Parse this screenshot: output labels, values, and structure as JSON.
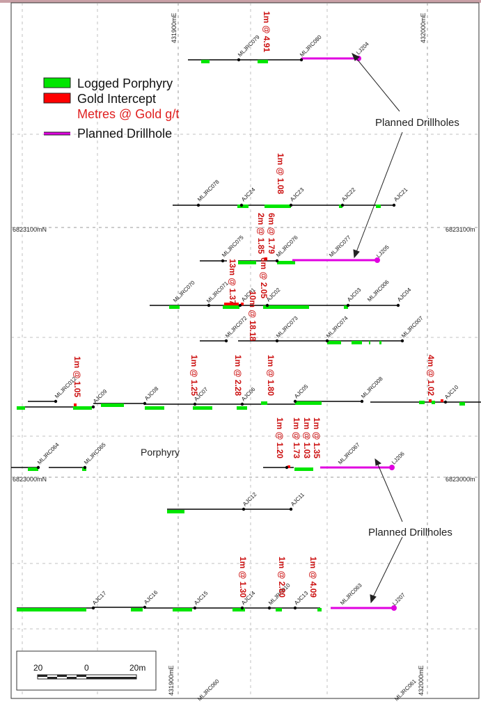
{
  "map": {
    "grid_labels": {
      "e_left_top": "431900mE",
      "e_right_top": "432000mE",
      "e_left_bottom": "431900mE",
      "e_right_bottom": "432000mE",
      "n_upper_left": "6823100mN",
      "n_upper_right": "6823100m",
      "n_lower_left": "6823000mN",
      "n_lower_right": "6823000m"
    },
    "legend": {
      "porphyry": "Logged Porphyry",
      "gold": "Gold Intercept",
      "metres": "Metres @ Gold g/t",
      "planned": "Planned Drillhole"
    },
    "callouts": {
      "top": "Planned Drillholes",
      "bottom": "Planned Drillholes",
      "porphyry": "Porphyry"
    },
    "scale_bar": {
      "left": "20",
      "mid": "0",
      "right": "20m"
    },
    "colors": {
      "porphyry": "#00e600",
      "gold": "#ff0000",
      "planned": "#e000e0",
      "hole": "#000000",
      "intercept_text": "#cc1111",
      "grid": "#999999"
    },
    "holes": [
      {
        "name": "MLJRC079"
      },
      {
        "name": "MLJRC080"
      },
      {
        "name": "LJ204"
      },
      {
        "name": "MLJRC078"
      },
      {
        "name": "AJC24"
      },
      {
        "name": "AJC23"
      },
      {
        "name": "AJC22"
      },
      {
        "name": "AJC21"
      },
      {
        "name": "MLJRC075"
      },
      {
        "name": "MLJRC076"
      },
      {
        "name": "MLJRC077"
      },
      {
        "name": "LJ205"
      },
      {
        "name": "MLJRC070"
      },
      {
        "name": "MLJRC071"
      },
      {
        "name": "AJC01"
      },
      {
        "name": "AJC02"
      },
      {
        "name": "AJC03"
      },
      {
        "name": "MLJRC006"
      },
      {
        "name": "AJC04"
      },
      {
        "name": "MLJRC072"
      },
      {
        "name": "MLJRC073"
      },
      {
        "name": "MLJRC074"
      },
      {
        "name": "MLJRC007"
      },
      {
        "name": "MLJRC012"
      },
      {
        "name": "AJC09"
      },
      {
        "name": "AJC08"
      },
      {
        "name": "AJC07"
      },
      {
        "name": "AJC06"
      },
      {
        "name": "AJC05"
      },
      {
        "name": "MLJRC008"
      },
      {
        "name": "AJC10"
      },
      {
        "name": "MLJRC064"
      },
      {
        "name": "MLJRC065"
      },
      {
        "name": "MLJRC067"
      },
      {
        "name": "LJ206"
      },
      {
        "name": "AJC12"
      },
      {
        "name": "AJC11"
      },
      {
        "name": "AJC17"
      },
      {
        "name": "AJC16"
      },
      {
        "name": "AJC15"
      },
      {
        "name": "AJC14"
      },
      {
        "name": "AJC13"
      },
      {
        "name": "MLJRC063"
      },
      {
        "name": "LJ207"
      },
      {
        "name": "MLJRC010"
      },
      {
        "name": "MLJRC060"
      },
      {
        "name": "MLJRC061"
      }
    ],
    "intercepts": [
      {
        "label": "1m @ 4.91"
      },
      {
        "label": "1m @ 1.08"
      },
      {
        "label": "6m @ 1.79"
      },
      {
        "label": "2m @ 1.85"
      },
      {
        "label": "6m @ 2.05"
      },
      {
        "label": "13m @ 1.37"
      },
      {
        "label": "10m @ 18.18"
      },
      {
        "label": "1m @ 1.05"
      },
      {
        "label": "1m @ 1.25"
      },
      {
        "label": "1m @ 2.28"
      },
      {
        "label": "1m @ 1.80"
      },
      {
        "label": "4m @ 1.02"
      },
      {
        "label": "1m @ 1.20"
      },
      {
        "label": "1m @ 1.73"
      },
      {
        "label": "1m @ 1.03"
      },
      {
        "label": "1m @ 1.35"
      },
      {
        "label": "1m @ 1.30"
      },
      {
        "label": "1m @ 2.80"
      },
      {
        "label": "1m @ 4.09"
      }
    ]
  }
}
